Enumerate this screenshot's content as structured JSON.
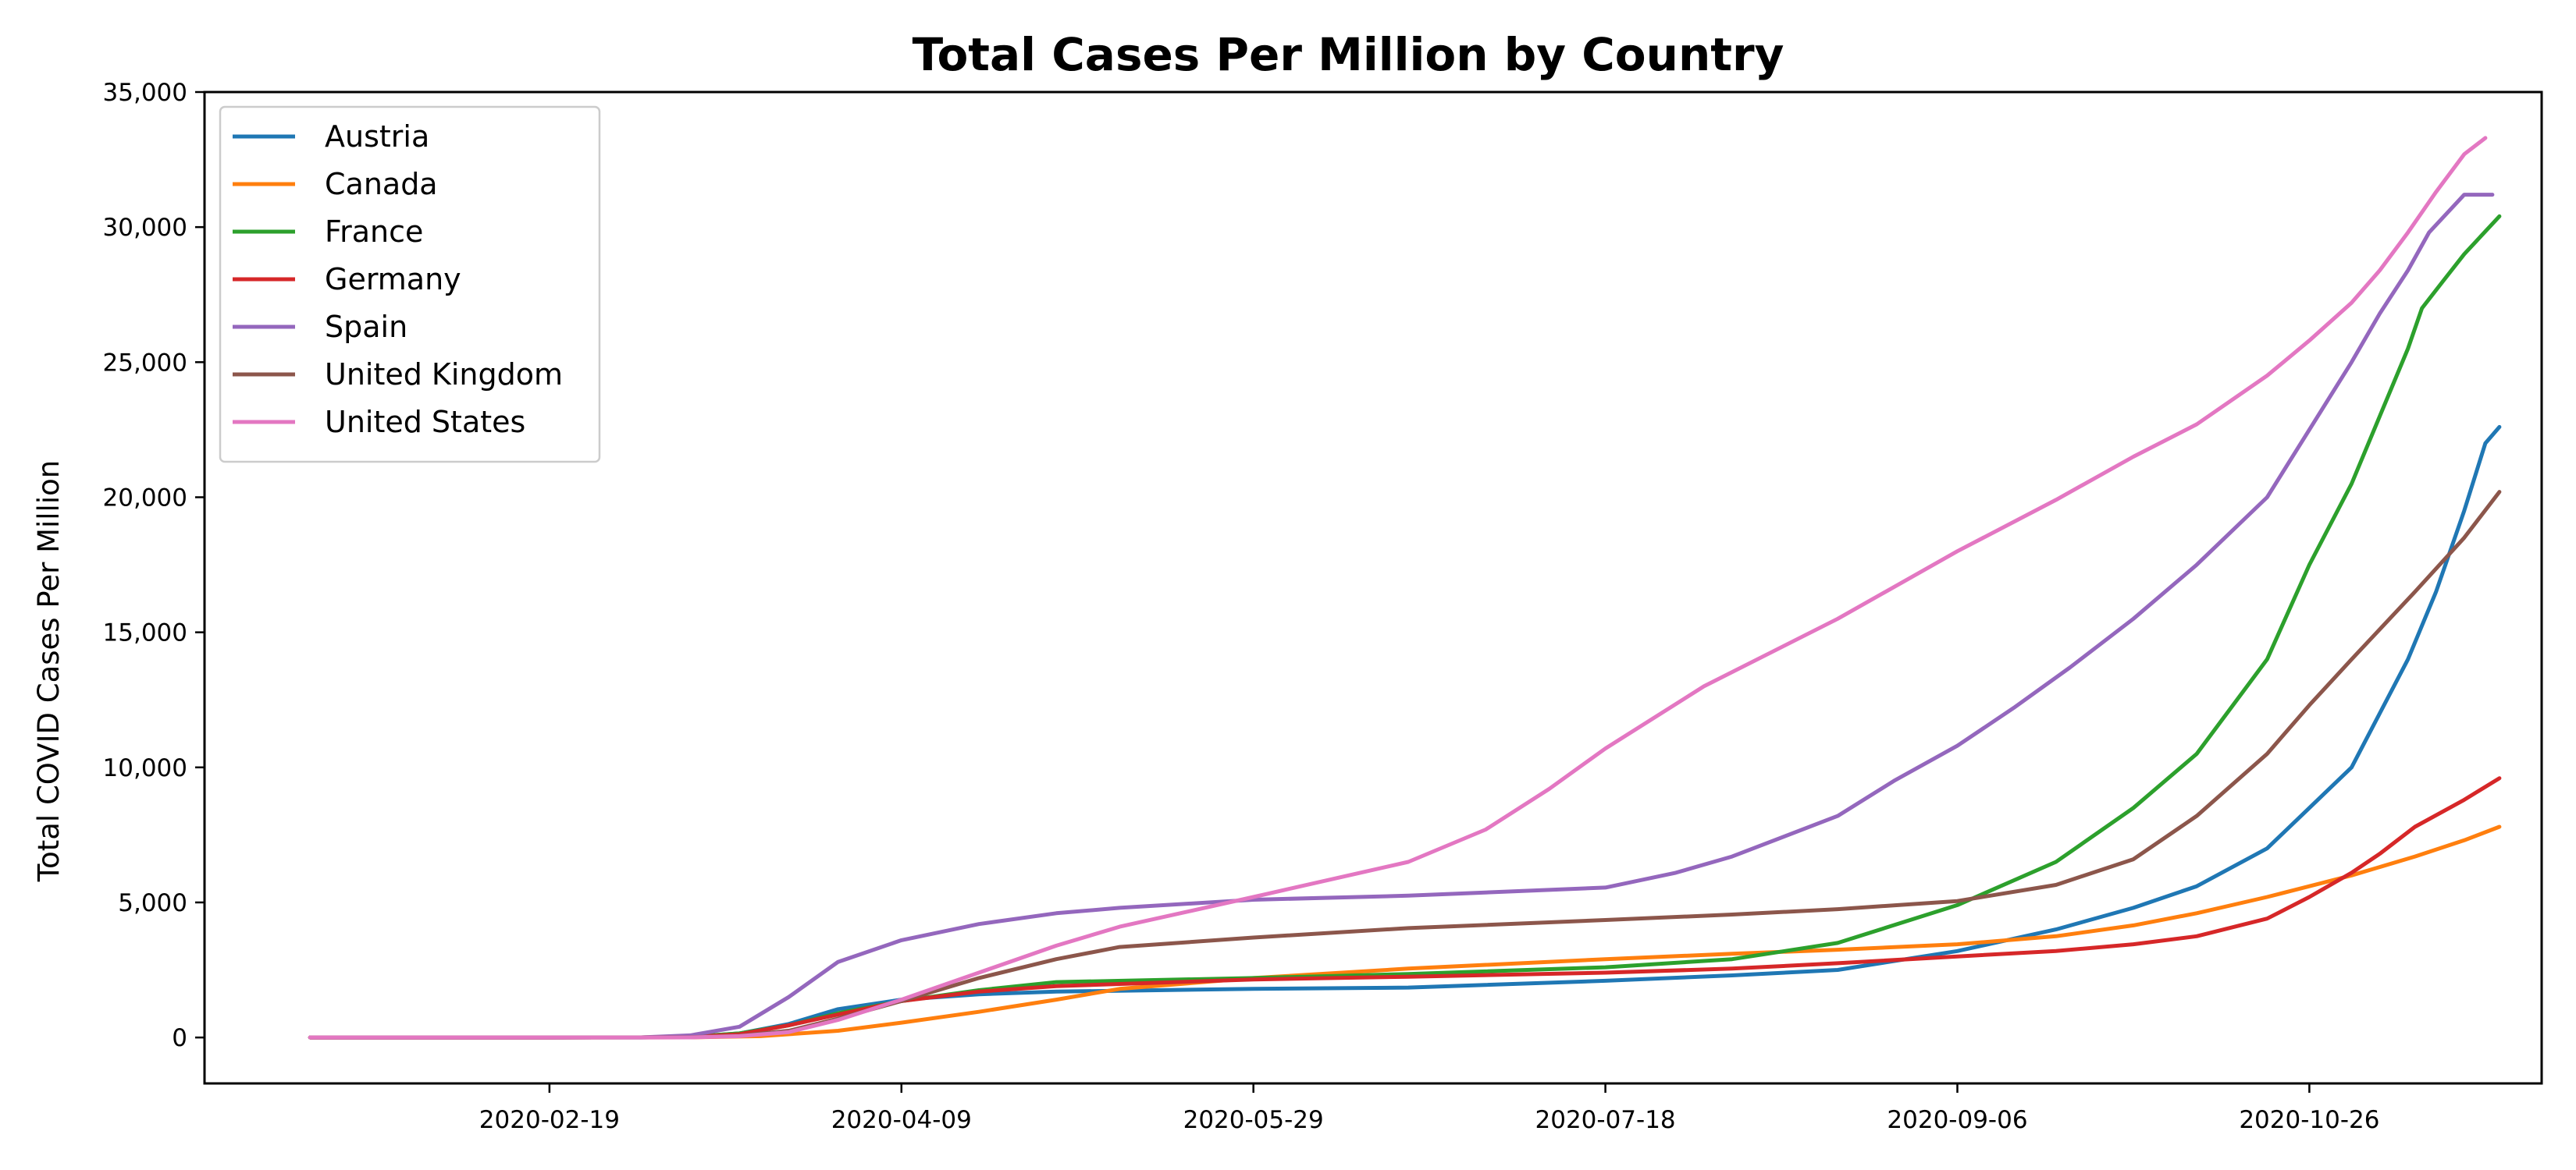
{
  "chart_data": {
    "type": "line",
    "title": "Total Cases Per Million by Country",
    "xlabel": "",
    "ylabel": "Total COVID Cases Per Million",
    "x_type": "date",
    "xlim": [
      "2020-01-01",
      "2020-11-28"
    ],
    "ylim": [
      -1700,
      35000
    ],
    "x_ticks": [
      "2020-02-19",
      "2020-04-09",
      "2020-05-29",
      "2020-07-18",
      "2020-09-06",
      "2020-10-26"
    ],
    "y_ticks": [
      0,
      5000,
      10000,
      15000,
      20000,
      25000,
      30000,
      35000
    ],
    "y_tick_labels": [
      "0",
      "5,000",
      "10,000",
      "15,000",
      "20,000",
      "25,000",
      "30,000",
      "35,000"
    ],
    "grid": false,
    "legend": "top-left",
    "series": [
      {
        "name": "Austria",
        "color": "#1f77b4",
        "points": [
          [
            "2020-01-16",
            0
          ],
          [
            "2020-02-19",
            0
          ],
          [
            "2020-03-03",
            2
          ],
          [
            "2020-03-10",
            20
          ],
          [
            "2020-03-17",
            150
          ],
          [
            "2020-03-24",
            500
          ],
          [
            "2020-03-31",
            1050
          ],
          [
            "2020-04-09",
            1400
          ],
          [
            "2020-04-20",
            1600
          ],
          [
            "2020-05-01",
            1700
          ],
          [
            "2020-05-29",
            1800
          ],
          [
            "2020-06-20",
            1850
          ],
          [
            "2020-07-18",
            2100
          ],
          [
            "2020-08-05",
            2300
          ],
          [
            "2020-08-20",
            2500
          ],
          [
            "2020-09-06",
            3200
          ],
          [
            "2020-09-20",
            4000
          ],
          [
            "2020-10-01",
            4800
          ],
          [
            "2020-10-10",
            5600
          ],
          [
            "2020-10-20",
            7000
          ],
          [
            "2020-10-26",
            8500
          ],
          [
            "2020-11-01",
            10000
          ],
          [
            "2020-11-05",
            12000
          ],
          [
            "2020-11-09",
            14000
          ],
          [
            "2020-11-13",
            16500
          ],
          [
            "2020-11-17",
            19500
          ],
          [
            "2020-11-20",
            22000
          ],
          [
            "2020-11-22",
            22600
          ]
        ]
      },
      {
        "name": "Canada",
        "color": "#ff7f0e",
        "points": [
          [
            "2020-01-16",
            0
          ],
          [
            "2020-02-19",
            0
          ],
          [
            "2020-03-10",
            5
          ],
          [
            "2020-03-20",
            50
          ],
          [
            "2020-03-31",
            250
          ],
          [
            "2020-04-09",
            550
          ],
          [
            "2020-04-20",
            950
          ],
          [
            "2020-05-01",
            1400
          ],
          [
            "2020-05-10",
            1800
          ],
          [
            "2020-05-29",
            2200
          ],
          [
            "2020-06-20",
            2550
          ],
          [
            "2020-07-18",
            2900
          ],
          [
            "2020-08-05",
            3100
          ],
          [
            "2020-08-20",
            3250
          ],
          [
            "2020-09-06",
            3450
          ],
          [
            "2020-09-20",
            3750
          ],
          [
            "2020-10-01",
            4150
          ],
          [
            "2020-10-10",
            4600
          ],
          [
            "2020-10-20",
            5200
          ],
          [
            "2020-10-26",
            5600
          ],
          [
            "2020-11-01",
            6000
          ],
          [
            "2020-11-10",
            6700
          ],
          [
            "2020-11-17",
            7300
          ],
          [
            "2020-11-22",
            7800
          ]
        ]
      },
      {
        "name": "France",
        "color": "#2ca02c",
        "points": [
          [
            "2020-01-16",
            0
          ],
          [
            "2020-02-19",
            0
          ],
          [
            "2020-03-03",
            5
          ],
          [
            "2020-03-10",
            30
          ],
          [
            "2020-03-17",
            150
          ],
          [
            "2020-03-24",
            450
          ],
          [
            "2020-03-31",
            900
          ],
          [
            "2020-04-09",
            1350
          ],
          [
            "2020-04-20",
            1750
          ],
          [
            "2020-05-01",
            2050
          ],
          [
            "2020-05-29",
            2200
          ],
          [
            "2020-06-20",
            2350
          ],
          [
            "2020-07-18",
            2600
          ],
          [
            "2020-08-05",
            2900
          ],
          [
            "2020-08-20",
            3500
          ],
          [
            "2020-09-06",
            4900
          ],
          [
            "2020-09-20",
            6500
          ],
          [
            "2020-10-01",
            8500
          ],
          [
            "2020-10-10",
            10500
          ],
          [
            "2020-10-20",
            14000
          ],
          [
            "2020-10-26",
            17500
          ],
          [
            "2020-11-01",
            20500
          ],
          [
            "2020-11-05",
            23000
          ],
          [
            "2020-11-09",
            25500
          ],
          [
            "2020-11-11",
            27000
          ],
          [
            "2020-11-14",
            28000
          ],
          [
            "2020-11-17",
            29000
          ],
          [
            "2020-11-22",
            30400
          ]
        ]
      },
      {
        "name": "Germany",
        "color": "#d62728",
        "points": [
          [
            "2020-01-16",
            0
          ],
          [
            "2020-02-19",
            0
          ],
          [
            "2020-03-03",
            5
          ],
          [
            "2020-03-10",
            20
          ],
          [
            "2020-03-17",
            120
          ],
          [
            "2020-03-24",
            450
          ],
          [
            "2020-03-31",
            850
          ],
          [
            "2020-04-09",
            1350
          ],
          [
            "2020-04-20",
            1700
          ],
          [
            "2020-05-01",
            1900
          ],
          [
            "2020-05-29",
            2150
          ],
          [
            "2020-06-20",
            2250
          ],
          [
            "2020-07-18",
            2400
          ],
          [
            "2020-08-05",
            2550
          ],
          [
            "2020-08-20",
            2750
          ],
          [
            "2020-09-06",
            3000
          ],
          [
            "2020-09-20",
            3200
          ],
          [
            "2020-10-01",
            3450
          ],
          [
            "2020-10-10",
            3750
          ],
          [
            "2020-10-20",
            4400
          ],
          [
            "2020-10-26",
            5200
          ],
          [
            "2020-11-01",
            6100
          ],
          [
            "2020-11-05",
            6800
          ],
          [
            "2020-11-10",
            7800
          ],
          [
            "2020-11-17",
            8800
          ],
          [
            "2020-11-22",
            9600
          ]
        ]
      },
      {
        "name": "Spain",
        "color": "#9467bd",
        "points": [
          [
            "2020-01-16",
            0
          ],
          [
            "2020-02-19",
            0
          ],
          [
            "2020-03-03",
            5
          ],
          [
            "2020-03-10",
            80
          ],
          [
            "2020-03-17",
            400
          ],
          [
            "2020-03-24",
            1500
          ],
          [
            "2020-03-31",
            2800
          ],
          [
            "2020-04-09",
            3600
          ],
          [
            "2020-04-20",
            4200
          ],
          [
            "2020-05-01",
            4600
          ],
          [
            "2020-05-10",
            4800
          ],
          [
            "2020-05-29",
            5100
          ],
          [
            "2020-06-20",
            5250
          ],
          [
            "2020-07-18",
            5550
          ],
          [
            "2020-07-28",
            6100
          ],
          [
            "2020-08-05",
            6700
          ],
          [
            "2020-08-20",
            8200
          ],
          [
            "2020-08-28",
            9500
          ],
          [
            "2020-09-06",
            10800
          ],
          [
            "2020-09-14",
            12200
          ],
          [
            "2020-09-22",
            13700
          ],
          [
            "2020-10-01",
            15500
          ],
          [
            "2020-10-10",
            17500
          ],
          [
            "2020-10-20",
            20000
          ],
          [
            "2020-10-26",
            22500
          ],
          [
            "2020-11-01",
            25000
          ],
          [
            "2020-11-05",
            26800
          ],
          [
            "2020-11-09",
            28400
          ],
          [
            "2020-11-12",
            29800
          ],
          [
            "2020-11-17",
            31200
          ],
          [
            "2020-11-21",
            31200
          ]
        ]
      },
      {
        "name": "United Kingdom",
        "color": "#8c564b",
        "points": [
          [
            "2020-01-16",
            0
          ],
          [
            "2020-02-19",
            0
          ],
          [
            "2020-03-03",
            3
          ],
          [
            "2020-03-10",
            10
          ],
          [
            "2020-03-17",
            60
          ],
          [
            "2020-03-24",
            250
          ],
          [
            "2020-03-31",
            700
          ],
          [
            "2020-04-09",
            1350
          ],
          [
            "2020-04-20",
            2200
          ],
          [
            "2020-05-01",
            2900
          ],
          [
            "2020-05-10",
            3350
          ],
          [
            "2020-05-29",
            3700
          ],
          [
            "2020-06-20",
            4050
          ],
          [
            "2020-07-18",
            4350
          ],
          [
            "2020-08-05",
            4550
          ],
          [
            "2020-08-20",
            4750
          ],
          [
            "2020-09-06",
            5050
          ],
          [
            "2020-09-20",
            5650
          ],
          [
            "2020-10-01",
            6600
          ],
          [
            "2020-10-10",
            8200
          ],
          [
            "2020-10-20",
            10500
          ],
          [
            "2020-10-26",
            12300
          ],
          [
            "2020-11-01",
            14000
          ],
          [
            "2020-11-10",
            16500
          ],
          [
            "2020-11-17",
            18500
          ],
          [
            "2020-11-22",
            20200
          ]
        ]
      },
      {
        "name": "United States",
        "color": "#e377c2",
        "points": [
          [
            "2020-01-16",
            0
          ],
          [
            "2020-02-19",
            0
          ],
          [
            "2020-03-03",
            1
          ],
          [
            "2020-03-10",
            5
          ],
          [
            "2020-03-17",
            50
          ],
          [
            "2020-03-24",
            200
          ],
          [
            "2020-03-31",
            650
          ],
          [
            "2020-04-09",
            1400
          ],
          [
            "2020-04-20",
            2400
          ],
          [
            "2020-05-01",
            3400
          ],
          [
            "2020-05-10",
            4100
          ],
          [
            "2020-05-29",
            5200
          ],
          [
            "2020-06-20",
            6500
          ],
          [
            "2020-07-01",
            7700
          ],
          [
            "2020-07-10",
            9200
          ],
          [
            "2020-07-18",
            10700
          ],
          [
            "2020-08-01",
            13000
          ],
          [
            "2020-08-20",
            15500
          ],
          [
            "2020-09-06",
            18000
          ],
          [
            "2020-09-20",
            19900
          ],
          [
            "2020-10-01",
            21500
          ],
          [
            "2020-10-10",
            22700
          ],
          [
            "2020-10-20",
            24500
          ],
          [
            "2020-10-26",
            25800
          ],
          [
            "2020-11-01",
            27200
          ],
          [
            "2020-11-05",
            28400
          ],
          [
            "2020-11-09",
            29800
          ],
          [
            "2020-11-13",
            31300
          ],
          [
            "2020-11-17",
            32700
          ],
          [
            "2020-11-20",
            33300
          ]
        ]
      }
    ]
  }
}
